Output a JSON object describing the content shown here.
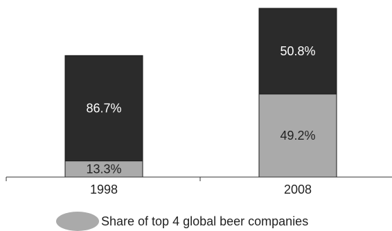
{
  "chart_data": {
    "type": "bar",
    "stacked": true,
    "percent_stacked": true,
    "categories": [
      "1998",
      "2008"
    ],
    "series": [
      {
        "name": "Share of top 4 global beer companies",
        "values": [
          13.3,
          49.2
        ],
        "labels": [
          "13.3%",
          "49.2%"
        ],
        "color": "#aaaaaa",
        "label_color": "#222222"
      },
      {
        "values": [
          86.7,
          50.8
        ],
        "labels": [
          "86.7%",
          "50.8%"
        ],
        "color": "#2b2b2b",
        "label_color": "#ffffff"
      }
    ],
    "bar_totals_relative": [
      0.72,
      1.0
    ],
    "legend": {
      "position": "bottom-center",
      "label": "Share of top 4 global beer companies",
      "marker": "ellipse"
    },
    "grid": false,
    "title": "",
    "xlabel": "",
    "ylabel": ""
  }
}
